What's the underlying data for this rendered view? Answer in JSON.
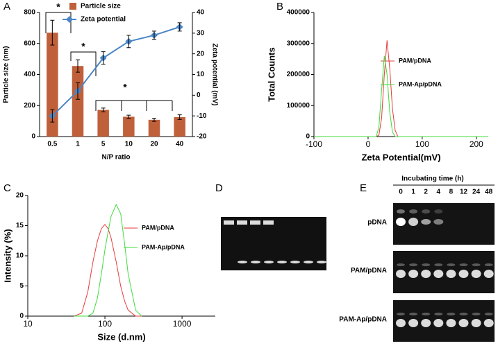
{
  "panel_labels": [
    "A",
    "B",
    "C",
    "D",
    "E"
  ],
  "chart_data": [
    {
      "type": "bar_line",
      "categories": [
        "0.5",
        "1",
        "5",
        "10",
        "20",
        "40"
      ],
      "series": [
        {
          "name": "Particle size",
          "color": "#c0603a",
          "values": [
            670,
            455,
            172,
            128,
            108,
            125
          ],
          "errors": [
            80,
            40,
            12,
            10,
            10,
            15
          ]
        },
        {
          "name": "Zeta potential",
          "color": "#4a86c5",
          "axis": "y2",
          "values": [
            -10,
            2,
            18,
            26,
            29,
            33
          ],
          "errors": [
            3,
            4,
            3,
            3,
            2,
            2
          ]
        }
      ],
      "ylim": [
        0,
        800
      ],
      "yticks": [
        0,
        200,
        400,
        600,
        800
      ],
      "y2lim": [
        -20,
        40
      ],
      "y2ticks": [
        -20,
        -10,
        0,
        10,
        20,
        30,
        40
      ],
      "xlabel": "N/P ratio",
      "ylabel": "Particle size (nm)",
      "y2label": "Zeta potential (mV)",
      "annotations": [
        "*",
        "*",
        "*"
      ]
    },
    {
      "type": "line",
      "x": [
        -100,
        15,
        20,
        25,
        30,
        35,
        40,
        45,
        50,
        55,
        222
      ],
      "series": [
        {
          "name": "PAM/pDNA",
          "color": "#e8393a",
          "values": [
            0,
            0,
            5000,
            60000,
            200000,
            310000,
            220000,
            90000,
            20000,
            0,
            0
          ]
        },
        {
          "name": "PAM-Ap/pDNA",
          "color": "#3ddc3a",
          "values": [
            0,
            0,
            30000,
            150000,
            260000,
            200000,
            80000,
            15000,
            0,
            0,
            0
          ]
        }
      ],
      "xlim": [
        -100,
        222
      ],
      "xticks": [
        -100,
        0,
        100,
        200
      ],
      "ylim": [
        0,
        400000
      ],
      "yticks": [
        0,
        100000,
        200000,
        300000,
        400000
      ],
      "xlabel": "Zeta Potential(mV)",
      "ylabel": "Total Counts"
    },
    {
      "type": "line",
      "xscale": "log",
      "x": [
        40,
        50,
        60,
        70,
        80,
        90,
        100,
        110,
        120,
        140,
        160,
        180,
        200,
        250,
        300
      ],
      "series": [
        {
          "name": "PAM/pDNA",
          "color": "#e8393a",
          "values": [
            0,
            0.5,
            4,
            9,
            12.5,
            14.5,
            15.2,
            14.5,
            13,
            9,
            5,
            2.5,
            1,
            0,
            0
          ]
        },
        {
          "name": "PAM-Ap/pDNA",
          "color": "#3ddc3a",
          "values": [
            0,
            0,
            0,
            0.5,
            3,
            7,
            11,
            14,
            16.5,
            18.5,
            17,
            12,
            7,
            1,
            0
          ]
        }
      ],
      "xlim": [
        10,
        2700
      ],
      "xticks": [
        10,
        100,
        1000
      ],
      "ylim": [
        0,
        20
      ],
      "yticks": [
        0,
        5,
        10,
        15,
        20
      ],
      "xlabel": "Size (d.nm)",
      "ylabel": "Intensity (%)"
    }
  ],
  "gel_e": {
    "title": "Incubating time (h)",
    "lanes": [
      "0",
      "1",
      "2",
      "4",
      "8",
      "12",
      "24",
      "48"
    ],
    "rows": [
      "pDNA",
      "PAM/pDNA",
      "PAM-Ap/pDNA"
    ]
  }
}
